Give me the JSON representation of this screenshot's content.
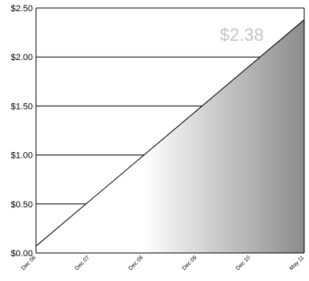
{
  "chart_data": {
    "type": "area",
    "title": "",
    "xlabel": "",
    "ylabel": "",
    "x_ticks": [
      "Dec 06",
      "Dec 07",
      "Dec 08",
      "Dec 09",
      "Dec 10",
      "May 11"
    ],
    "y_ticks": [
      "$0.00",
      "$0.50",
      "$1.00",
      "$1.50",
      "$2.00",
      "$2.50"
    ],
    "y_tick_values": [
      0,
      0.5,
      1.0,
      1.5,
      2.0,
      2.5
    ],
    "ylim": [
      0,
      2.5
    ],
    "grid": "horizontal",
    "legend": "none",
    "series": [
      {
        "x": [
          "Dec 06",
          "May 11"
        ],
        "values": [
          0.07,
          2.38
        ]
      }
    ],
    "annotation": "$2.38",
    "colors": {
      "line": "#000000",
      "grid": "#000000",
      "fill_light": "#ffffff",
      "fill_dark": "#8c8c8c",
      "annotation": "#c4c4c4"
    }
  }
}
